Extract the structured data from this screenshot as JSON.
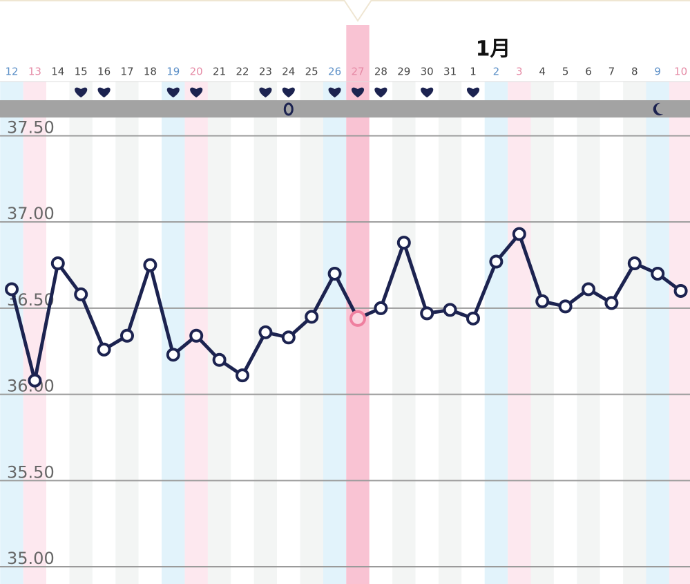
{
  "chart_data": {
    "type": "line",
    "month_label": "1月",
    "categories": [
      "12",
      "13",
      "14",
      "15",
      "16",
      "17",
      "18",
      "19",
      "20",
      "21",
      "22",
      "23",
      "24",
      "25",
      "26",
      "27",
      "28",
      "29",
      "30",
      "31",
      "1",
      "2",
      "3",
      "4",
      "5",
      "6",
      "7",
      "8",
      "9",
      "10"
    ],
    "series": [
      {
        "name": null,
        "color": "#1c2350",
        "values": [
          36.61,
          36.08,
          36.76,
          36.58,
          36.26,
          36.34,
          36.75,
          36.23,
          36.34,
          36.2,
          36.11,
          36.36,
          36.33,
          36.45,
          36.7,
          36.44,
          36.5,
          36.88,
          36.47,
          36.49,
          36.44,
          36.77,
          36.93,
          36.54,
          36.51,
          36.61,
          36.53,
          36.76,
          36.7,
          36.6
        ]
      }
    ],
    "ylim": [
      34.9,
      37.6
    ],
    "yticks": [
      {
        "value": 37.5,
        "label": "37.50"
      },
      {
        "value": 37.0,
        "label": "37.00"
      },
      {
        "value": 36.5,
        "label": "36.50"
      },
      {
        "value": 36.0,
        "label": "36.00"
      },
      {
        "value": 35.5,
        "label": "35.50"
      },
      {
        "value": 35.0,
        "label": "35.00"
      }
    ],
    "grid": true
  }
}
